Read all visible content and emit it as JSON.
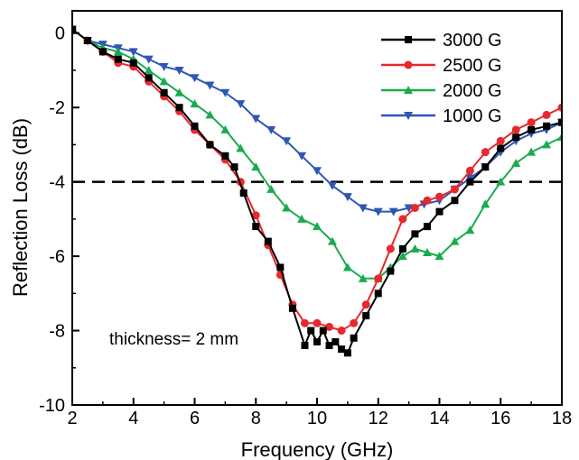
{
  "chart_data": {
    "type": "line",
    "title": "",
    "xlabel": "Frequency (GHz)",
    "ylabel": "Reflection Loss (dB)",
    "xlim": [
      2,
      18
    ],
    "ylim": [
      -10,
      0.6
    ],
    "xticks": [
      2,
      4,
      6,
      8,
      10,
      12,
      14,
      16,
      18
    ],
    "yticks": [
      0,
      -2,
      -4,
      -6,
      -8,
      -10
    ],
    "grid": false,
    "legend_position": "top-right",
    "reference_line": {
      "y": -4,
      "style": "dashed",
      "color": "#000000"
    },
    "annotation": "thickness= 2 mm",
    "series": [
      {
        "name": "3000 G",
        "color": "#000000",
        "marker": "square",
        "x": [
          2,
          2.5,
          3,
          3.5,
          4,
          4.5,
          5,
          5.5,
          6,
          6.5,
          7,
          7.3,
          7.6,
          8,
          8.4,
          8.8,
          9.2,
          9.6,
          9.8,
          10,
          10.2,
          10.4,
          10.6,
          10.8,
          11,
          11.2,
          11.6,
          12,
          12.4,
          12.8,
          13.2,
          13.6,
          14,
          14.5,
          15,
          15.5,
          16,
          16.5,
          17,
          17.5,
          18
        ],
        "y": [
          0.1,
          -0.2,
          -0.5,
          -0.7,
          -0.8,
          -1.2,
          -1.6,
          -2.0,
          -2.5,
          -3.0,
          -3.3,
          -3.6,
          -4.3,
          -5.2,
          -5.6,
          -6.3,
          -7.4,
          -8.4,
          -8.0,
          -8.3,
          -8.0,
          -8.4,
          -8.3,
          -8.5,
          -8.6,
          -8.2,
          -7.6,
          -7.0,
          -6.4,
          -5.8,
          -5.4,
          -5.2,
          -4.8,
          -4.5,
          -4.0,
          -3.6,
          -3.1,
          -2.8,
          -2.6,
          -2.5,
          -2.4
        ]
      },
      {
        "name": "2500 G",
        "color": "#e8282e",
        "marker": "circle",
        "x": [
          2,
          2.5,
          3,
          3.5,
          4,
          4.5,
          5,
          5.5,
          6,
          6.5,
          7,
          7.5,
          8,
          8.4,
          8.8,
          9.2,
          9.6,
          10,
          10.4,
          10.8,
          11.2,
          11.6,
          12,
          12.4,
          12.8,
          13.2,
          13.6,
          14,
          14.5,
          15,
          15.5,
          16,
          16.5,
          17,
          17.5,
          18
        ],
        "y": [
          0.1,
          -0.2,
          -0.5,
          -0.8,
          -0.9,
          -1.3,
          -1.7,
          -2.1,
          -2.6,
          -3.0,
          -3.4,
          -4.0,
          -4.9,
          -5.7,
          -6.5,
          -7.3,
          -7.8,
          -7.8,
          -7.9,
          -8.0,
          -7.8,
          -7.3,
          -6.6,
          -5.8,
          -5.0,
          -4.7,
          -4.5,
          -4.4,
          -4.2,
          -3.7,
          -3.2,
          -2.9,
          -2.6,
          -2.4,
          -2.2,
          -2.0
        ]
      },
      {
        "name": "2000 G",
        "color": "#1aab4e",
        "marker": "triangle-up",
        "x": [
          2,
          2.5,
          3,
          3.5,
          4,
          4.5,
          5,
          5.5,
          6,
          6.5,
          7,
          7.5,
          8,
          8.5,
          9,
          9.5,
          10,
          10.5,
          11,
          11.5,
          12,
          12.4,
          12.8,
          13.2,
          13.6,
          14,
          14.5,
          15,
          15.5,
          16,
          16.5,
          17,
          17.5,
          18
        ],
        "y": [
          0.1,
          -0.2,
          -0.4,
          -0.5,
          -0.7,
          -1.0,
          -1.3,
          -1.6,
          -1.9,
          -2.2,
          -2.6,
          -3.1,
          -3.6,
          -4.2,
          -4.7,
          -5.0,
          -5.2,
          -5.6,
          -6.3,
          -6.6,
          -6.6,
          -6.3,
          -6.0,
          -5.8,
          -5.9,
          -6.0,
          -5.6,
          -5.3,
          -4.6,
          -4.0,
          -3.5,
          -3.2,
          -3.0,
          -2.8
        ]
      },
      {
        "name": "1000 G",
        "color": "#2f56b4",
        "marker": "triangle-down",
        "x": [
          2,
          2.5,
          3,
          3.5,
          4,
          4.5,
          5,
          5.5,
          6,
          6.5,
          7,
          7.5,
          8,
          8.5,
          9,
          9.5,
          10,
          10.5,
          11,
          11.5,
          12,
          12.5,
          13,
          13.5,
          14,
          14.5,
          15,
          15.5,
          16,
          16.5,
          17,
          17.5,
          18
        ],
        "y": [
          0.1,
          -0.2,
          -0.3,
          -0.4,
          -0.5,
          -0.7,
          -0.9,
          -1.0,
          -1.2,
          -1.4,
          -1.6,
          -1.9,
          -2.3,
          -2.6,
          -2.9,
          -3.3,
          -3.7,
          -4.1,
          -4.4,
          -4.7,
          -4.8,
          -4.8,
          -4.7,
          -4.6,
          -4.5,
          -4.2,
          -3.9,
          -3.6,
          -3.2,
          -2.9,
          -2.7,
          -2.6,
          -2.4
        ]
      }
    ]
  }
}
